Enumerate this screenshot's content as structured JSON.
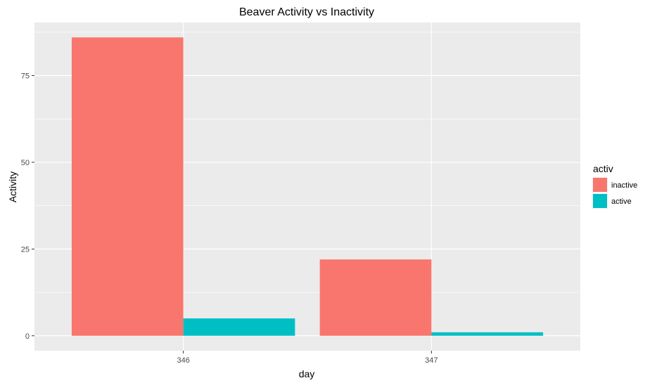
{
  "chart_data": {
    "type": "bar",
    "title": "Beaver Activity vs Inactivity",
    "xlabel": "day",
    "ylabel": "Activity",
    "categories": [
      "346",
      "347"
    ],
    "series": [
      {
        "name": "inactive",
        "values": [
          86,
          22
        ],
        "color": "#F8766D"
      },
      {
        "name": "active",
        "values": [
          5,
          1
        ],
        "color": "#00BFC4"
      }
    ],
    "ylim": [
      -4.3,
      90.3
    ],
    "yticks": [
      0,
      25,
      50,
      75
    ],
    "grid": true,
    "legend": {
      "title": "activ",
      "placement": "right"
    },
    "panel_background": "#EBEBEB",
    "grid_color": "#FFFFFF"
  }
}
